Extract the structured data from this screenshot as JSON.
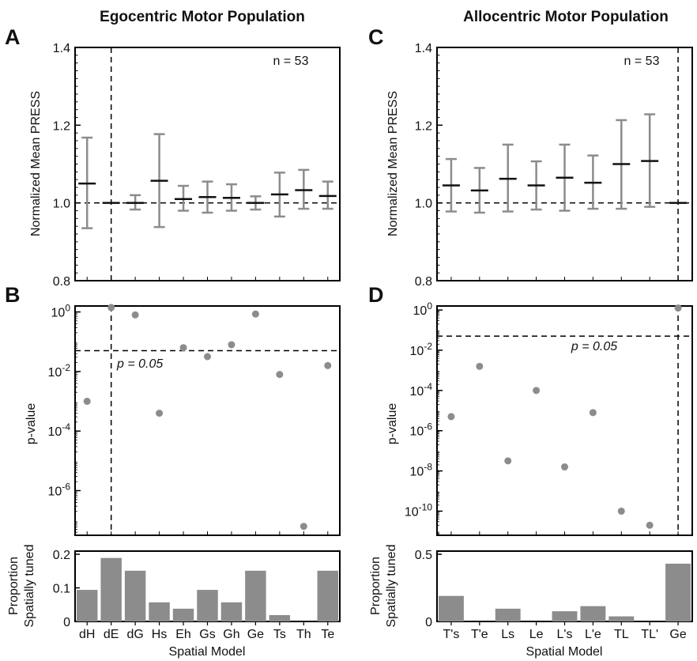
{
  "colors": {
    "errorbar": "#8c8c8c",
    "mean": "#111111",
    "dot": "#8c8c8c",
    "bar": "#8c8c8c",
    "axis": "#000000"
  },
  "chart_data": [
    {
      "panel": "A",
      "title": "Egocentric Motor Population",
      "type": "errorbar",
      "ylabel": "Normalized Mean PRESS",
      "ylim": [
        0.8,
        1.4
      ],
      "yticks": [
        "0.8",
        "1.0",
        "1.2",
        "1.4"
      ],
      "annotation": "n = 53",
      "reference_y": 1.0,
      "best_model": "dE",
      "categories": [
        "dH",
        "dE",
        "dG",
        "Hs",
        "Eh",
        "Gs",
        "Gh",
        "Ge",
        "Ts",
        "Th",
        "Te"
      ],
      "mean": [
        1.05,
        1.0,
        1.0,
        1.057,
        1.01,
        1.015,
        1.013,
        1.0,
        1.022,
        1.033,
        1.018
      ],
      "lower": [
        0.935,
        1.0,
        0.983,
        0.938,
        0.98,
        0.975,
        0.98,
        0.983,
        0.965,
        0.985,
        0.985
      ],
      "upper": [
        1.168,
        1.0,
        1.02,
        1.177,
        1.044,
        1.055,
        1.048,
        1.017,
        1.078,
        1.085,
        1.055
      ]
    },
    {
      "panel": "B",
      "type": "scatter",
      "ylabel": "p-value",
      "log_y": true,
      "ylim_exp": [
        -7.5,
        0.2
      ],
      "yticks": [
        "10^0",
        "10^-2",
        "10^-4",
        "10^-6"
      ],
      "threshold_label": "p = 0.05",
      "threshold": 0.05,
      "best_model": "dE",
      "categories": [
        "dH",
        "dE",
        "dG",
        "Hs",
        "Eh",
        "Gs",
        "Gh",
        "Ge",
        "Ts",
        "Th",
        "Te"
      ],
      "p_exponent": [
        -3.0,
        0.15,
        -0.1,
        -3.4,
        -1.2,
        -1.5,
        -1.1,
        -0.07,
        -2.1,
        -7.2,
        -1.8
      ]
    },
    {
      "panel": "bottom-left",
      "type": "bar",
      "ylabel": [
        "Proportion",
        "Spatially tuned"
      ],
      "xlabel": "Spatial Model",
      "ylim": [
        0,
        0.2
      ],
      "yticks": [
        "0",
        "0.1",
        "0.2"
      ],
      "categories": [
        "dH",
        "dE",
        "dG",
        "Hs",
        "Eh",
        "Gs",
        "Gh",
        "Ge",
        "Ts",
        "Th",
        "Te"
      ],
      "values": [
        0.094,
        0.189,
        0.151,
        0.057,
        0.038,
        0.094,
        0.057,
        0.151,
        0.019,
        0.0,
        0.151
      ]
    },
    {
      "panel": "C",
      "title": "Allocentric Motor Population",
      "type": "errorbar",
      "ylabel": "Normalized Mean PRESS",
      "ylim": [
        0.8,
        1.4
      ],
      "yticks": [
        "0.8",
        "1.0",
        "1.2",
        "1.4"
      ],
      "annotation": "n = 53",
      "reference_y": 1.0,
      "best_model": "Ge",
      "categories": [
        "T's",
        "T'e",
        "Ls",
        "Le",
        "L's",
        "L'e",
        "TL",
        "TL'",
        "Ge"
      ],
      "mean": [
        1.045,
        1.032,
        1.062,
        1.045,
        1.065,
        1.052,
        1.1,
        1.108,
        1.0
      ],
      "lower": [
        0.978,
        0.975,
        0.978,
        0.983,
        0.98,
        0.985,
        0.985,
        0.99,
        1.0
      ],
      "upper": [
        1.113,
        1.09,
        1.15,
        1.107,
        1.15,
        1.122,
        1.213,
        1.228,
        1.0
      ]
    },
    {
      "panel": "D",
      "type": "scatter",
      "ylabel": "p-value",
      "log_y": true,
      "ylim_exp": [
        -11.2,
        0.2
      ],
      "yticks": [
        "10^0",
        "10^-2",
        "10^-4",
        "10^-6",
        "10^-8",
        "10^-10"
      ],
      "threshold_label": "p = 0.05",
      "threshold": 0.05,
      "best_model": "Ge",
      "categories": [
        "T's",
        "T'e",
        "Ls",
        "Le",
        "L's",
        "L'e",
        "TL",
        "TL'",
        "Ge"
      ],
      "p_exponent": [
        -5.3,
        -2.8,
        -7.5,
        -4.0,
        -7.8,
        -5.1,
        -10.0,
        -10.7,
        0.1
      ]
    },
    {
      "panel": "bottom-right",
      "type": "bar",
      "ylabel": [
        "Proportion",
        "Spatially tuned"
      ],
      "xlabel": "Spatial Model",
      "ylim": [
        0,
        0.5
      ],
      "yticks": [
        "0",
        "0.5"
      ],
      "categories": [
        "T's",
        "T'e",
        "Ls",
        "Le",
        "L's",
        "L'e",
        "TL",
        "TL'",
        "Ge"
      ],
      "values": [
        0.19,
        0.0,
        0.095,
        0.0,
        0.076,
        0.114,
        0.038,
        0.0,
        0.43
      ]
    }
  ]
}
